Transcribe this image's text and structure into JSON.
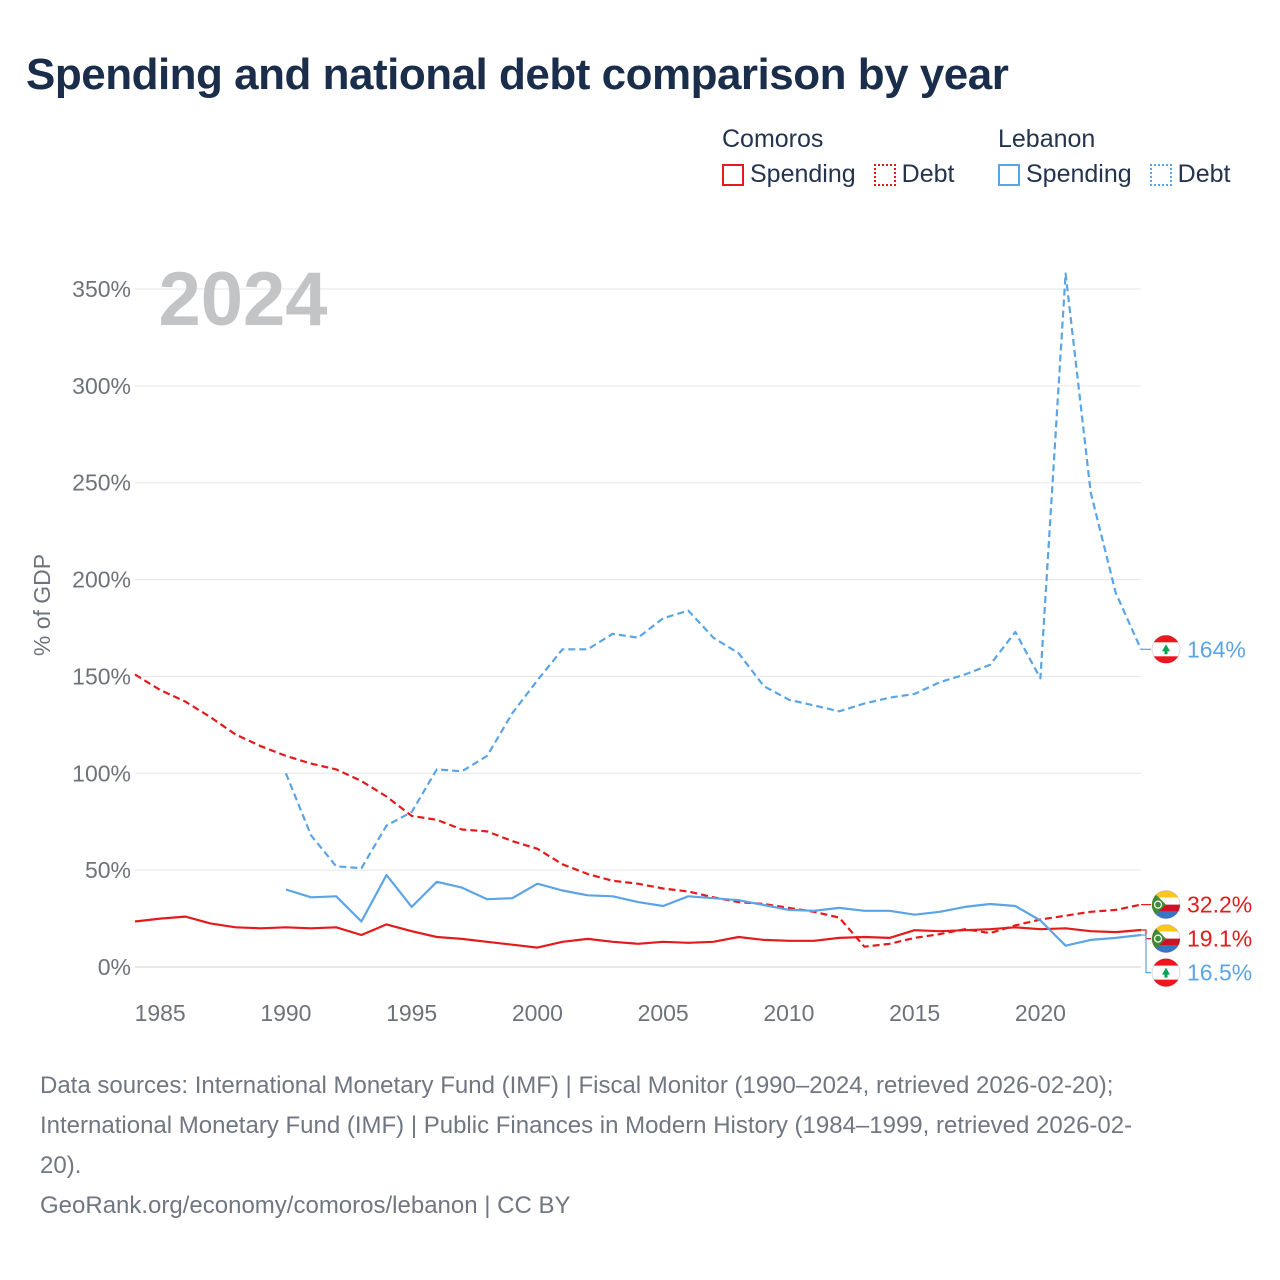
{
  "title": "Spending and national debt comparison by year",
  "year_label": "2024",
  "legend": {
    "groups": [
      {
        "name": "Comoros",
        "color": "#e41a1c",
        "items": [
          {
            "label": "Spending",
            "style": "solid"
          },
          {
            "label": "Debt",
            "style": "dotted"
          }
        ]
      },
      {
        "name": "Lebanon",
        "color": "#5ba4e5",
        "items": [
          {
            "label": "Spending",
            "style": "solid"
          },
          {
            "label": "Debt",
            "style": "dotted"
          }
        ]
      }
    ]
  },
  "chart_data": {
    "type": "line",
    "title": "Spending and national debt comparison by year",
    "xlabel": "",
    "ylabel": "% of GDP",
    "xlim": [
      1984,
      2024
    ],
    "ylim": [
      0,
      360
    ],
    "x_ticks": [
      1985,
      1990,
      1995,
      2000,
      2005,
      2010,
      2015,
      2020
    ],
    "x_tick_labels": [
      "1985",
      "1990",
      "1995",
      "2000",
      "2005",
      "2010",
      "2015",
      "2020"
    ],
    "y_ticks": [
      0,
      50,
      100,
      150,
      200,
      250,
      300,
      350
    ],
    "y_tick_labels": [
      "0%",
      "50%",
      "100%",
      "150%",
      "200%",
      "250%",
      "300%",
      "350%"
    ],
    "grid": true,
    "series": [
      {
        "name": "Comoros Spending",
        "country": "Comoros",
        "color": "#e41a1c",
        "dash": "solid",
        "x": [
          1984,
          1985,
          1986,
          1987,
          1988,
          1989,
          1990,
          1991,
          1992,
          1993,
          1994,
          1995,
          1996,
          1997,
          1998,
          1999,
          2000,
          2001,
          2002,
          2003,
          2004,
          2005,
          2006,
          2007,
          2008,
          2009,
          2010,
          2011,
          2012,
          2013,
          2014,
          2015,
          2016,
          2017,
          2018,
          2019,
          2020,
          2021,
          2022,
          2023,
          2024
        ],
        "y": [
          23.5,
          25,
          26,
          22.5,
          20.5,
          20,
          20.5,
          20,
          20.5,
          16.5,
          22,
          18.5,
          15.5,
          14.5,
          13,
          11.5,
          10,
          13,
          14.5,
          13,
          12,
          13,
          12.5,
          13,
          15.5,
          14,
          13.5,
          13.5,
          15,
          15.5,
          15,
          19,
          18.5,
          19,
          19.5,
          20.5,
          19.5,
          20,
          18.5,
          18,
          19.1
        ],
        "end_label": "19.1%"
      },
      {
        "name": "Comoros Debt",
        "country": "Comoros",
        "color": "#e41a1c",
        "dash": "dashed",
        "x": [
          1984,
          1985,
          1986,
          1987,
          1988,
          1989,
          1990,
          1991,
          1992,
          1993,
          1994,
          1995,
          1996,
          1997,
          1998,
          1999,
          2000,
          2001,
          2002,
          2003,
          2004,
          2005,
          2006,
          2007,
          2008,
          2009,
          2010,
          2011,
          2012,
          2013,
          2014,
          2015,
          2016,
          2017,
          2018,
          2019,
          2020,
          2021,
          2022,
          2023,
          2024
        ],
        "y": [
          151,
          143,
          137,
          129,
          120,
          114,
          109,
          105,
          102,
          96,
          88,
          78,
          76,
          71,
          70,
          65,
          61,
          53,
          48,
          44.5,
          43,
          40.5,
          39,
          36,
          33.5,
          32.5,
          30.5,
          28.5,
          25.5,
          10.5,
          12,
          15,
          17,
          19.5,
          17.5,
          21.5,
          24.5,
          26.5,
          28.5,
          29.5,
          32.2
        ],
        "end_label": "32.2%"
      },
      {
        "name": "Lebanon Spending",
        "country": "Lebanon",
        "color": "#5ba4e5",
        "dash": "solid",
        "x": [
          1990,
          1991,
          1992,
          1993,
          1994,
          1995,
          1996,
          1997,
          1998,
          1999,
          2000,
          2001,
          2002,
          2003,
          2004,
          2005,
          2006,
          2007,
          2008,
          2009,
          2010,
          2011,
          2012,
          2013,
          2014,
          2015,
          2016,
          2017,
          2018,
          2019,
          2020,
          2021,
          2022,
          2023,
          2024
        ],
        "y": [
          40,
          36,
          36.5,
          23.5,
          47.5,
          31,
          44,
          41,
          35,
          35.5,
          43,
          39.5,
          37,
          36.5,
          33.5,
          31.5,
          36.5,
          35.5,
          34.5,
          32,
          29.5,
          29,
          30.5,
          29,
          29,
          27,
          28.5,
          31,
          32.5,
          31.5,
          24,
          11,
          14,
          15,
          16.5
        ],
        "end_label": "16.5%"
      },
      {
        "name": "Lebanon Debt",
        "country": "Lebanon",
        "color": "#5ba4e5",
        "dash": "dashed",
        "x": [
          1990,
          1991,
          1992,
          1993,
          1994,
          1995,
          1996,
          1997,
          1998,
          1999,
          2000,
          2001,
          2002,
          2003,
          2004,
          2005,
          2006,
          2007,
          2008,
          2009,
          2010,
          2011,
          2012,
          2013,
          2014,
          2015,
          2016,
          2017,
          2018,
          2019,
          2020,
          2021,
          2022,
          2023,
          2024
        ],
        "y": [
          100,
          68,
          52,
          51,
          73,
          80,
          102,
          101,
          109,
          131,
          148,
          164,
          164,
          172,
          170,
          180,
          184,
          170,
          162,
          145,
          138,
          135,
          132,
          136,
          139,
          141,
          147,
          151,
          156,
          173,
          149,
          358,
          245,
          193,
          164
        ],
        "end_label": "164%"
      }
    ]
  },
  "footer": {
    "sources_line1": "Data sources: International Monetary Fund (IMF) | Fiscal Monitor (1990–2024, retrieved 2026-02-20);",
    "sources_line2": "International Monetary Fund (IMF) | Public Finances in Modern History (1984–1999, retrieved 2026-02-",
    "sources_line3": "20).",
    "credit": "GeoRank.org/economy/comoros/lebanon | CC BY"
  }
}
